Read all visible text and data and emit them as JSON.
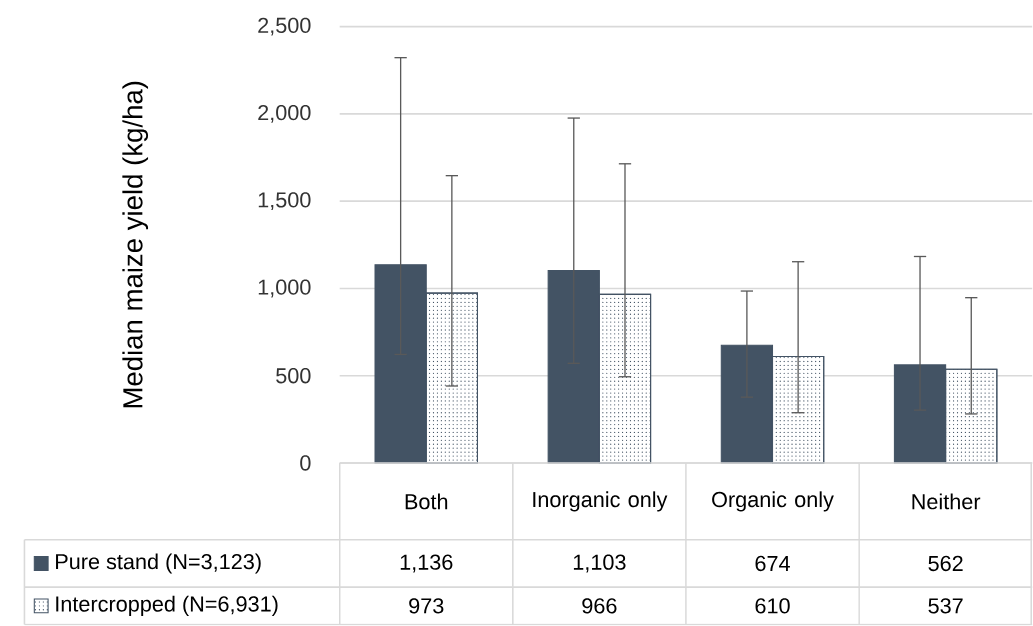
{
  "chart_data": {
    "type": "bar",
    "ylabel": "Median maize yield (kg/ha)",
    "categories": [
      "Both",
      "Inorganic only",
      "Organic only",
      "Neither"
    ],
    "series": [
      {
        "name": "Pure stand (N=3,123)",
        "color": "#435364",
        "values": [
          1136,
          1103,
          674,
          562
        ],
        "value_labels": [
          "1,136",
          "1,103",
          "674",
          "562"
        ],
        "errors": [
          [
            622,
            2322
          ],
          [
            571,
            1976
          ],
          [
            377,
            985
          ],
          [
            303,
            1183
          ]
        ]
      },
      {
        "name": "Intercropped (N=6,931)",
        "color": "#435364",
        "values": [
          973,
          966,
          610,
          537
        ],
        "value_labels": [
          "973",
          "966",
          "610",
          "537"
        ],
        "errors": [
          [
            441,
            1646
          ],
          [
            494,
            1714
          ],
          [
            288,
            1153
          ],
          [
            281,
            947
          ]
        ]
      }
    ],
    "ylim": [
      0,
      2500
    ],
    "yticks": [
      0,
      500,
      {
        "value": 1000,
        "label": "1,000"
      },
      {
        "value": 1500,
        "label": "1,500"
      },
      {
        "value": 2000,
        "label": "2,000"
      },
      {
        "value": 2500,
        "label": "2,500"
      }
    ],
    "grid": "y",
    "legend": "bottom"
  }
}
